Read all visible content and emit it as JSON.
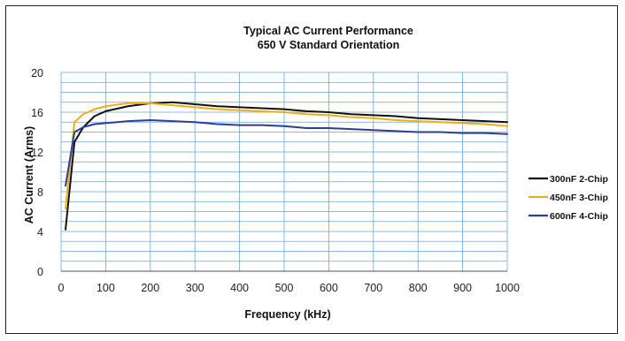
{
  "chart_data": {
    "type": "line",
    "title": "Typical AC Current Performance",
    "subtitle": "650 V Standard Orientation",
    "xlabel": "Frequency (kHz)",
    "ylabel": "AC Current (Arms)",
    "xlim": [
      0,
      1000
    ],
    "ylim": [
      0,
      20
    ],
    "x_ticks": [
      0,
      100,
      200,
      300,
      400,
      500,
      600,
      700,
      800,
      900,
      1000
    ],
    "y_ticks": [
      0,
      4,
      8,
      12,
      16,
      20
    ],
    "grid": true,
    "legend_position": "right",
    "series": [
      {
        "name": "300nF 2-Chip",
        "color": "#111111",
        "x": [
          10,
          30,
          50,
          75,
          100,
          150,
          200,
          250,
          300,
          350,
          400,
          450,
          500,
          550,
          600,
          650,
          700,
          750,
          800,
          850,
          900,
          950,
          1000
        ],
        "y": [
          4.2,
          13.0,
          14.5,
          15.6,
          16.1,
          16.6,
          16.9,
          17.0,
          16.8,
          16.6,
          16.5,
          16.4,
          16.3,
          16.1,
          16.0,
          15.8,
          15.7,
          15.6,
          15.4,
          15.3,
          15.2,
          15.1,
          15.0
        ]
      },
      {
        "name": "450nF 3-Chip",
        "color": "#f0ad1a",
        "x": [
          10,
          30,
          50,
          75,
          100,
          150,
          200,
          250,
          300,
          350,
          400,
          450,
          500,
          550,
          600,
          650,
          700,
          750,
          800,
          850,
          900,
          950,
          1000
        ],
        "y": [
          6.3,
          15.0,
          15.8,
          16.3,
          16.6,
          16.9,
          16.9,
          16.7,
          16.5,
          16.3,
          16.2,
          16.1,
          16.0,
          15.8,
          15.7,
          15.5,
          15.4,
          15.2,
          15.1,
          15.0,
          14.9,
          14.8,
          14.6
        ]
      },
      {
        "name": "600nF 4-Chip",
        "color": "#2b3f99",
        "x": [
          10,
          30,
          50,
          75,
          100,
          150,
          200,
          250,
          300,
          350,
          400,
          450,
          500,
          550,
          600,
          650,
          700,
          750,
          800,
          850,
          900,
          950,
          1000
        ],
        "y": [
          8.6,
          14.0,
          14.5,
          14.8,
          14.9,
          15.1,
          15.2,
          15.1,
          15.0,
          14.8,
          14.7,
          14.7,
          14.6,
          14.4,
          14.4,
          14.3,
          14.2,
          14.1,
          14.0,
          14.0,
          13.9,
          13.9,
          13.8
        ]
      }
    ]
  }
}
